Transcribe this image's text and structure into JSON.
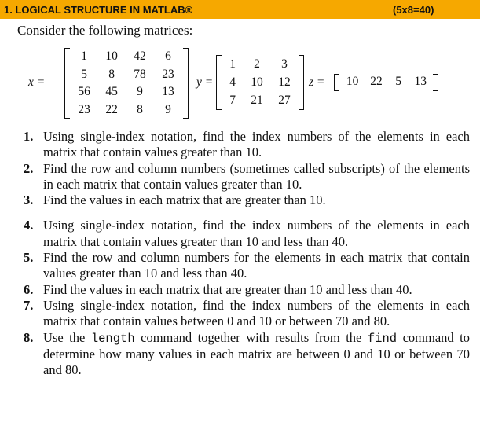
{
  "header": {
    "title": "1. LOGICAL STRUCTURE IN MATLAB®",
    "points": "(5x8=40)"
  },
  "intro": "Consider the following matrices:",
  "matrices": [
    {
      "name": "x =",
      "rows": [
        [
          1,
          10,
          42,
          6
        ],
        [
          5,
          8,
          78,
          23
        ],
        [
          56,
          45,
          9,
          13
        ],
        [
          23,
          22,
          8,
          9
        ]
      ]
    },
    {
      "name": "y =",
      "rows": [
        [
          1,
          2,
          3
        ],
        [
          4,
          10,
          12
        ],
        [
          7,
          21,
          27
        ]
      ]
    },
    {
      "name": "z =",
      "rows": [
        [
          10,
          22,
          5,
          13
        ]
      ]
    }
  ],
  "questions": [
    {
      "number": "1.",
      "segments": [
        {
          "text": "Using single-index notation, find the index numbers of the elements in each matrix that contain values greater than 10."
        }
      ]
    },
    {
      "number": "2.",
      "segments": [
        {
          "text": "Find the row and column numbers (sometimes called subscripts) of the elements in each matrix that contain values greater than 10."
        }
      ]
    },
    {
      "number": "3.",
      "segments": [
        {
          "text": "Find the values in each matrix that are greater than 10."
        }
      ]
    },
    {
      "number": "4.",
      "segments": [
        {
          "text": "Using single-index notation, find the index numbers of the elements in each matrix that contain values greater than 10 and less than 40."
        }
      ]
    },
    {
      "number": "5.",
      "segments": [
        {
          "text": "Find the row and column numbers for the elements in each matrix that contain values greater than 10 and less than 40."
        }
      ]
    },
    {
      "number": "6.",
      "segments": [
        {
          "text": "Find the values in each matrix that are greater than 10 and less than 40."
        }
      ]
    },
    {
      "number": "7.",
      "segments": [
        {
          "text": "Using single-index notation, find the index numbers of the elements in each matrix that contain values between 0 and 10 or between 70 and 80."
        }
      ]
    },
    {
      "number": "8.",
      "segments": [
        {
          "text": "Use the "
        },
        {
          "code": "length"
        },
        {
          "text": " command together with results from the "
        },
        {
          "code": "find"
        },
        {
          "text": " command to determine how many values in each matrix are between 0 and 10 or between 70 and 80."
        }
      ]
    }
  ]
}
